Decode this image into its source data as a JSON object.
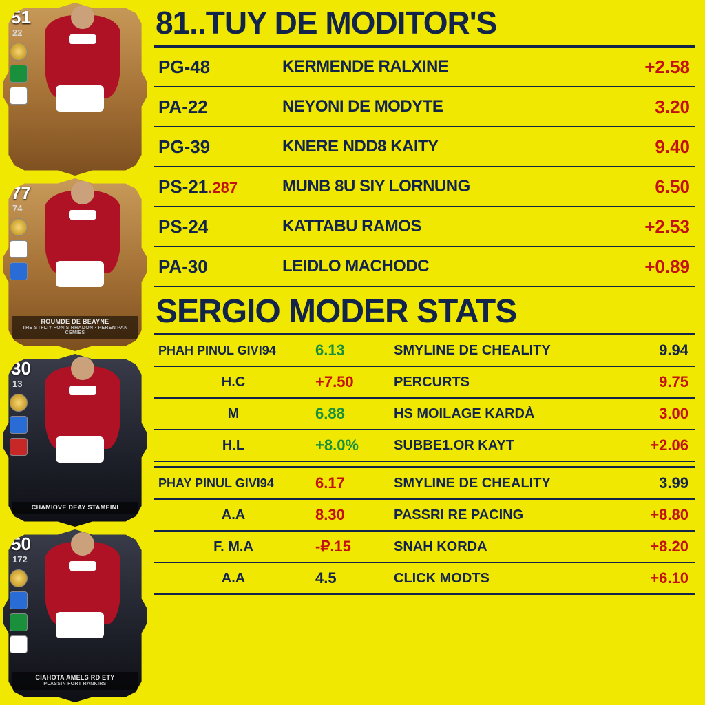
{
  "colors": {
    "bg": "#f0e800",
    "navy": "#13244a",
    "red": "#c2120f",
    "green": "#1a8f3c"
  },
  "cards": [
    {
      "rating": "51",
      "sub": "22",
      "style": "gold",
      "name": "",
      "subtitle": ""
    },
    {
      "rating": "77",
      "sub": "74",
      "style": "gold",
      "name": "ROUMDE DE BEAYNE",
      "subtitle": "THE STFLIY FONIS RHADON · PEREN PAN CEMIES"
    },
    {
      "rating": "30",
      "sub": "13",
      "style": "dark",
      "name": "CHAMIOVE DEAY STAMEINI",
      "subtitle": ""
    },
    {
      "rating": "50",
      "sub": "172",
      "style": "dark",
      "name": "CIAHOTA AMELS RD ETY",
      "subtitle": "PLASSIN FORT RANKIRS"
    }
  ],
  "header1": "81..TUY DE MODITOR'S",
  "table1": [
    {
      "code": "PG-48",
      "frac": "",
      "label": "KERMENDE RALXINE",
      "val": "+2.58",
      "valColor": "red"
    },
    {
      "code": "PA-22",
      "frac": "",
      "label": "NEYONI DE MODYTE",
      "val": "3.20",
      "valColor": "red"
    },
    {
      "code": "PG-39",
      "frac": "",
      "label": "KNERE NDD8 KAITY",
      "val": "9.40",
      "valColor": "red"
    },
    {
      "code": "PS-21",
      "frac": ".287",
      "label": "MUNB 8U SIY LORNUNG",
      "val": "6.50",
      "valColor": "red"
    },
    {
      "code": "PS-24",
      "frac": "",
      "label": "KATTABU RAMOS",
      "val": "+2.53",
      "valColor": "red"
    },
    {
      "code": "PA-30",
      "frac": "",
      "label": "LEIDLO MACHODC",
      "val": "+0.89",
      "valColor": "red"
    }
  ],
  "header2": "SERGIO MODER STATS",
  "stats": [
    {
      "header": {
        "lLabel": "PHAH PINUL GIVI94",
        "lVal": "6.13",
        "lColor": "green",
        "rLabel": "SMYLINE DE CHEALITY",
        "rVal": "9.94",
        "rColor": "navy"
      },
      "rows": [
        {
          "lLabel": "H.C",
          "lVal": "+7.50",
          "lColor": "red",
          "rLabel": "PERCURTS",
          "rVal": "9.75",
          "rColor": "red"
        },
        {
          "lLabel": "M",
          "lVal": "6.88",
          "lColor": "green",
          "rLabel": "HS MOILAGE KARDÀ",
          "rVal": "3.00",
          "rColor": "red"
        },
        {
          "lLabel": "H.L",
          "lVal": "+8.0%",
          "lColor": "green",
          "rLabel": "SUBBE1.OR KAYT",
          "rVal": "+2.06",
          "rColor": "red"
        }
      ]
    },
    {
      "header": {
        "lLabel": "PHAY PINUL GIVI94",
        "lVal": "6.17",
        "lColor": "red",
        "rLabel": "SMYLINE DE CHEALITY",
        "rVal": "3.99",
        "rColor": "navy"
      },
      "rows": [
        {
          "lLabel": "A.A",
          "lVal": "8.30",
          "lColor": "red",
          "rLabel": "PASSRI RE PACING",
          "rVal": "+8.80",
          "rColor": "red"
        },
        {
          "lLabel": "F. M.A",
          "lVal": "-₽.15",
          "lColor": "red",
          "rLabel": "SNAH KORDA",
          "rVal": "+8.20",
          "rColor": "red"
        },
        {
          "lLabel": "A.A",
          "lVal": "4.5",
          "lColor": "navy",
          "rLabel": "CLICK MODTS",
          "rVal": "+6.10",
          "rColor": "red"
        }
      ]
    }
  ]
}
